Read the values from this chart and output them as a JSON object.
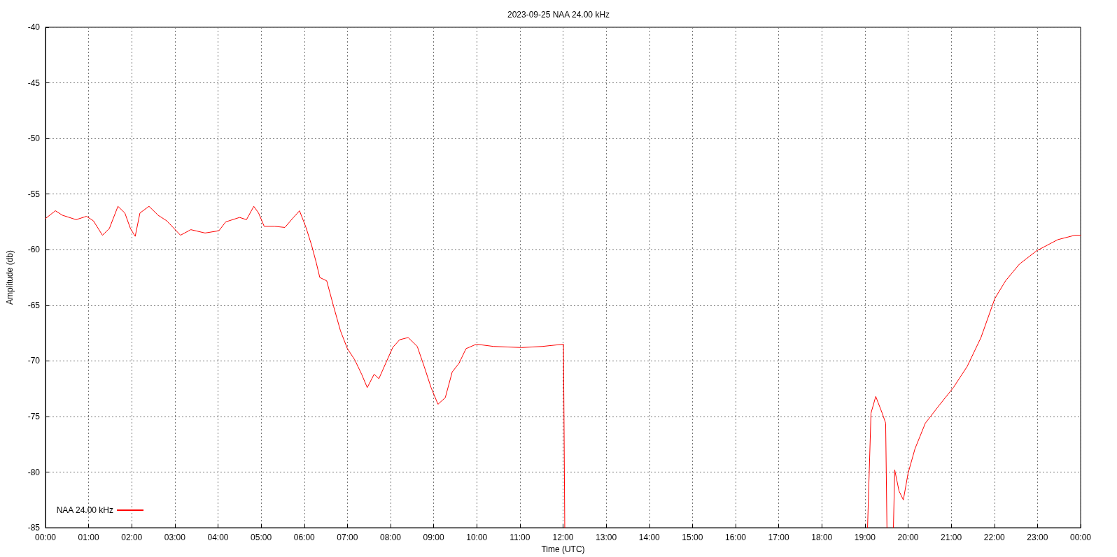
{
  "chart_data": {
    "type": "line",
    "title": "2023-09-25 NAA 24.00 kHz",
    "xlabel": "Time (UTC)",
    "ylabel": "Amplitude (db)",
    "xlim": [
      0,
      24
    ],
    "xticks": [
      {
        "value": 0,
        "label": "00:00"
      },
      {
        "value": 1,
        "label": "01:00"
      },
      {
        "value": 2,
        "label": "02:00"
      },
      {
        "value": 3,
        "label": "03:00"
      },
      {
        "value": 4,
        "label": "04:00"
      },
      {
        "value": 5,
        "label": "05:00"
      },
      {
        "value": 6,
        "label": "06:00"
      },
      {
        "value": 7,
        "label": "07:00"
      },
      {
        "value": 8,
        "label": "08:00"
      },
      {
        "value": 9,
        "label": "09:00"
      },
      {
        "value": 10,
        "label": "10:00"
      },
      {
        "value": 11,
        "label": "11:00"
      },
      {
        "value": 12,
        "label": "12:00"
      },
      {
        "value": 13,
        "label": "13:00"
      },
      {
        "value": 14,
        "label": "14:00"
      },
      {
        "value": 15,
        "label": "15:00"
      },
      {
        "value": 16,
        "label": "16:00"
      },
      {
        "value": 17,
        "label": "17:00"
      },
      {
        "value": 18,
        "label": "18:00"
      },
      {
        "value": 19,
        "label": "19:00"
      },
      {
        "value": 20,
        "label": "20:00"
      },
      {
        "value": 21,
        "label": "21:00"
      },
      {
        "value": 22,
        "label": "22:00"
      },
      {
        "value": 23,
        "label": "23:00"
      },
      {
        "value": 24,
        "label": "00:00"
      }
    ],
    "ylim": [
      -85,
      -40
    ],
    "yticks": [
      -85,
      -80,
      -75,
      -70,
      -65,
      -60,
      -55,
      -50,
      -45,
      -40
    ],
    "grid": true,
    "legend": "bottom left",
    "line_style": "solid",
    "marker": "none",
    "series": [
      {
        "name": "NAA 24.00 kHz",
        "color": "#ff0000",
        "x": [
          0,
          0.23,
          0.39,
          0.71,
          0.95,
          1.11,
          1.32,
          1.48,
          1.68,
          1.84,
          1.97,
          2.08,
          2.19,
          2.4,
          2.61,
          2.81,
          3.13,
          3.37,
          3.7,
          4.02,
          4.18,
          4.5,
          4.66,
          4.83,
          4.94,
          5.07,
          5.31,
          5.55,
          5.75,
          5.89,
          6.04,
          6.17,
          6.28,
          6.36,
          6.52,
          6.68,
          6.84,
          7,
          7.17,
          7.33,
          7.46,
          7.62,
          7.73,
          7.89,
          8.05,
          8.21,
          8.41,
          8.62,
          8.78,
          8.94,
          9.1,
          9.27,
          9.43,
          9.59,
          9.75,
          9.99,
          10.39,
          11.04,
          11.52,
          12.01,
          12.04,
          15,
          19.06,
          19.14,
          19.25,
          19.4,
          19.48,
          19.51,
          19.6,
          19.66,
          19.69,
          19.79,
          19.89,
          20,
          20.16,
          20.4,
          20.72,
          21.05,
          21.37,
          21.69,
          22.01,
          22.26,
          22.58,
          22.98,
          23.47,
          23.87,
          24
        ],
        "values": [
          -57.2,
          -56.5,
          -56.9,
          -57.3,
          -57,
          -57.4,
          -58.7,
          -58.1,
          -56.1,
          -56.7,
          -58.1,
          -58.8,
          -56.7,
          -56.1,
          -56.9,
          -57.4,
          -58.7,
          -58.2,
          -58.5,
          -58.3,
          -57.5,
          -57.1,
          -57.3,
          -56.1,
          -56.7,
          -57.9,
          -57.9,
          -58,
          -57.1,
          -56.5,
          -58,
          -59.6,
          -61.2,
          -62.5,
          -62.8,
          -65.1,
          -67.3,
          -68.9,
          -69.9,
          -71.2,
          -72.4,
          -71.2,
          -71.6,
          -70.2,
          -68.8,
          -68.1,
          -67.9,
          -68.7,
          -70.5,
          -72.4,
          -73.9,
          -73.3,
          -71,
          -70.2,
          -68.9,
          -68.5,
          -68.7,
          -68.8,
          -68.7,
          -68.5,
          -85,
          null,
          -85,
          -74.7,
          -73.2,
          -74.7,
          -75.6,
          -85,
          null,
          -85,
          -79.8,
          -81.7,
          -82.5,
          -80.1,
          -77.9,
          -75.6,
          -74,
          -72.4,
          -70.5,
          -67.9,
          -64.4,
          -62.8,
          -61.3,
          -60.1,
          -59.1,
          -58.7,
          -58.7
        ]
      }
    ]
  }
}
